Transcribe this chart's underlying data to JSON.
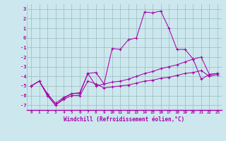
{
  "x": [
    0,
    1,
    2,
    3,
    4,
    5,
    6,
    7,
    8,
    9,
    10,
    11,
    12,
    13,
    14,
    15,
    16,
    17,
    18,
    19,
    20,
    21,
    22,
    23
  ],
  "line_spike": [
    -5.0,
    -4.5,
    -6.0,
    -7.0,
    -6.3,
    -5.8,
    -5.8,
    -3.7,
    -5.0,
    -4.8,
    -1.1,
    -1.2,
    -0.2,
    0.0,
    2.7,
    2.6,
    2.8,
    1.0,
    -1.2,
    -1.2,
    -2.2,
    -4.3,
    -3.8,
    -3.7
  ],
  "line_upper": [
    -5.0,
    -4.5,
    -5.8,
    -6.8,
    -6.2,
    -5.8,
    -5.7,
    -3.7,
    -3.6,
    -4.8,
    -4.6,
    -4.5,
    -4.3,
    -4.0,
    -3.7,
    -3.5,
    -3.2,
    -3.0,
    -2.8,
    -2.5,
    -2.2,
    -2.0,
    -3.8,
    -3.7
  ],
  "line_lower": [
    -5.0,
    -4.5,
    -5.9,
    -7.0,
    -6.4,
    -6.0,
    -6.0,
    -4.5,
    -4.8,
    -5.2,
    -5.1,
    -5.0,
    -4.9,
    -4.7,
    -4.5,
    -4.4,
    -4.2,
    -4.1,
    -3.9,
    -3.7,
    -3.6,
    -3.4,
    -4.0,
    -3.8
  ],
  "ylim": [
    -7.5,
    3.5
  ],
  "xlim": [
    -0.5,
    23.5
  ],
  "yticks": [
    3,
    2,
    1,
    0,
    -1,
    -2,
    -3,
    -4,
    -5,
    -6,
    -7
  ],
  "xticks": [
    0,
    1,
    2,
    3,
    4,
    5,
    6,
    7,
    8,
    9,
    10,
    11,
    12,
    13,
    14,
    15,
    16,
    17,
    18,
    19,
    20,
    21,
    22,
    23
  ],
  "color": "#aa00aa",
  "bg_color": "#cce8ee",
  "grid_color": "#99bbbb",
  "xlabel": "Windchill (Refroidissement éolien,°C)",
  "marker": "+"
}
